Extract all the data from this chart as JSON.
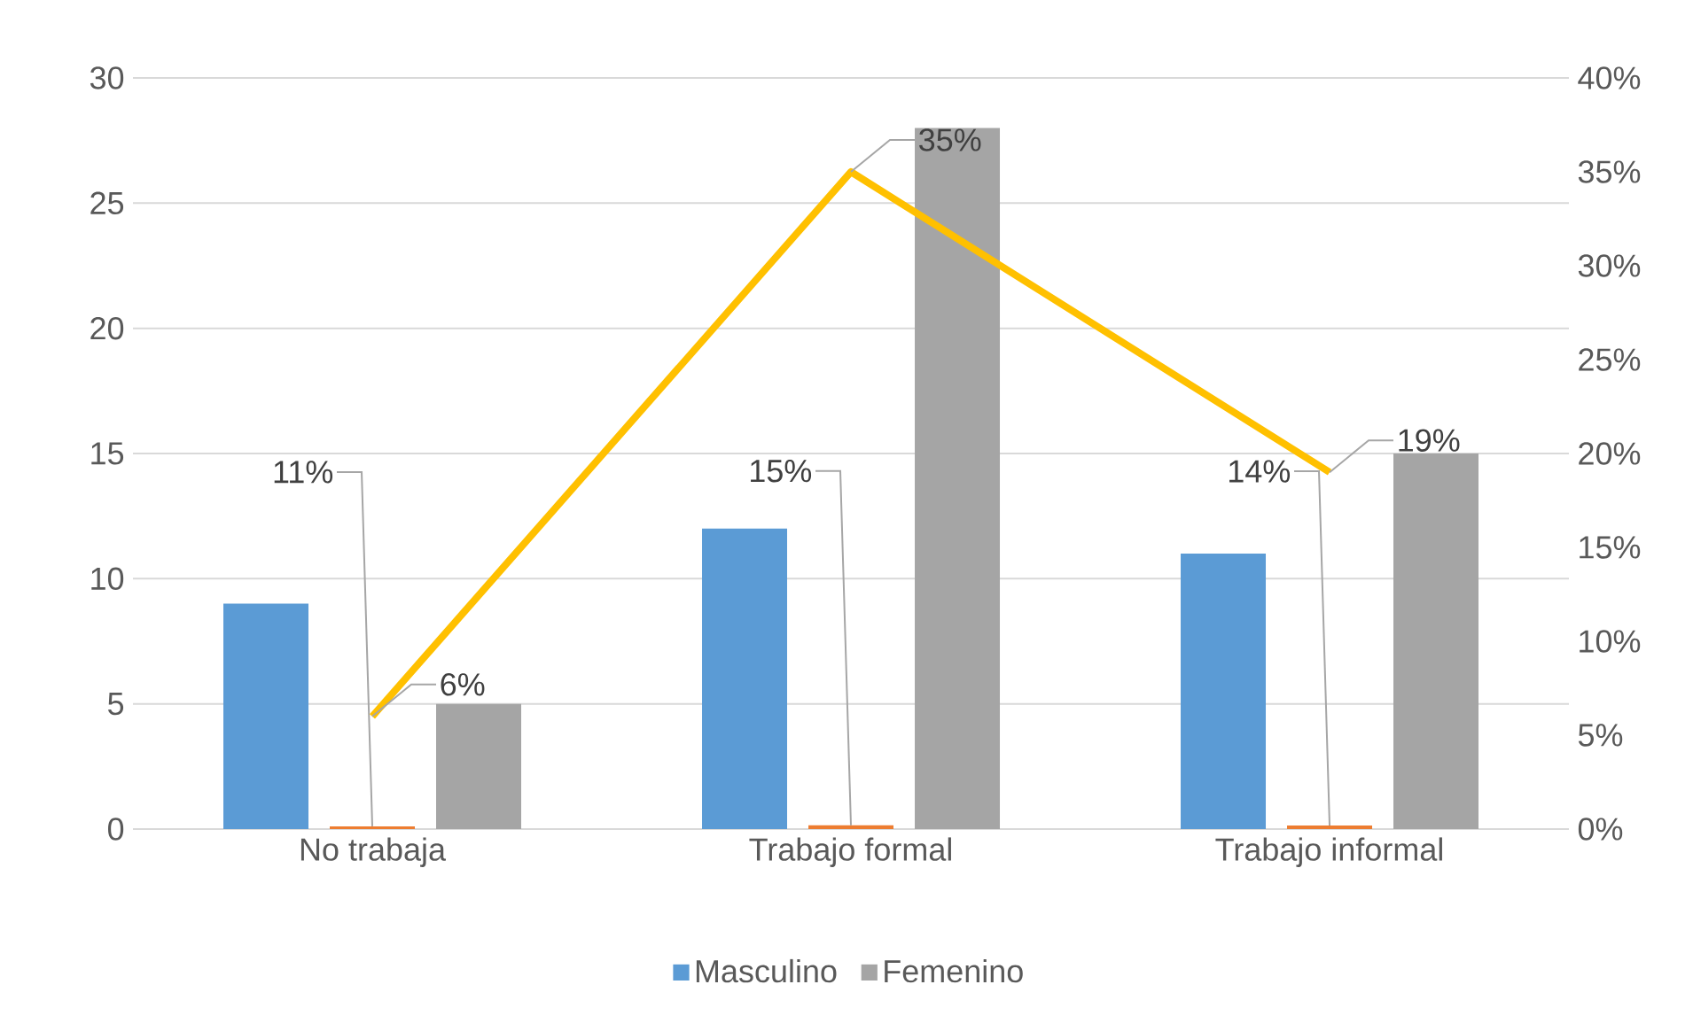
{
  "chart_data": {
    "type": "bar",
    "categories": [
      "No trabaja",
      "Trabajo formal",
      "Trabajo informal"
    ],
    "series": [
      {
        "name": "Masculino",
        "color": "#5b9bd5",
        "values": [
          9,
          12,
          11
        ]
      },
      {
        "color": "#ed7d31",
        "values": [
          0.11,
          0.15,
          0.14
        ],
        "value_labels": [
          "11%",
          "15%",
          "14%"
        ]
      },
      {
        "name": "Femenino",
        "color": "#a5a5a5",
        "values": [
          5,
          28,
          15
        ]
      },
      {
        "type": "line",
        "axis": "y2",
        "color": "#ffc000",
        "values": [
          6,
          35,
          19
        ],
        "value_labels": [
          "6%",
          "35%",
          "19%"
        ]
      }
    ],
    "ylim": [
      0,
      30
    ],
    "yticks": [
      0,
      5,
      10,
      15,
      20,
      25,
      30
    ],
    "y2lim": [
      0,
      40
    ],
    "y2ticks": [
      {
        "value": 0,
        "label": "0%"
      },
      {
        "value": 5,
        "label": "5%"
      },
      {
        "value": 10,
        "label": "10%"
      },
      {
        "value": 15,
        "label": "15%"
      },
      {
        "value": 20,
        "label": "20%"
      },
      {
        "value": 25,
        "label": "25%"
      },
      {
        "value": 30,
        "label": "30%"
      },
      {
        "value": 35,
        "label": "35%"
      },
      {
        "value": 40,
        "label": "40%"
      }
    ],
    "grid": "y",
    "legend": "bottom"
  }
}
